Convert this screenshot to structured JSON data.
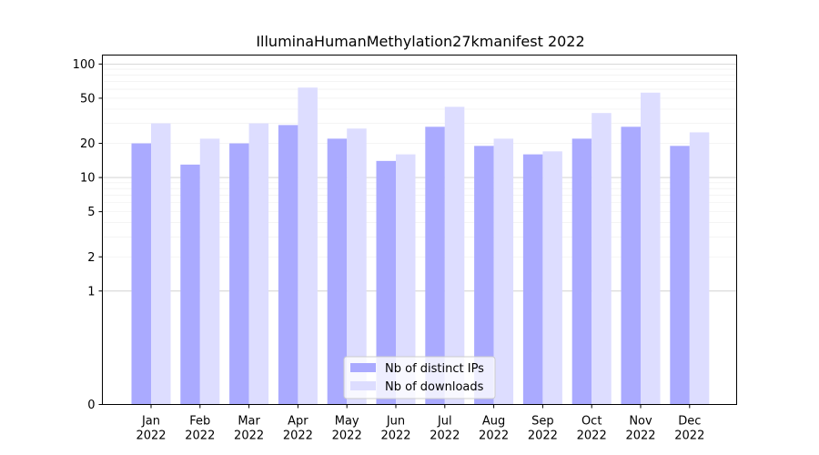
{
  "chart_data": {
    "type": "bar",
    "title": "IlluminaHumanMethylation27kmanifest 2022",
    "xlabel": "",
    "ylabel": "",
    "yscale": "symlog",
    "ylim": [
      0,
      120
    ],
    "yticks": [
      0,
      1,
      2,
      5,
      10,
      20,
      50,
      100
    ],
    "grid": "y",
    "legend_position": "bottom-center",
    "categories": [
      [
        "Jan",
        "2022"
      ],
      [
        "Feb",
        "2022"
      ],
      [
        "Mar",
        "2022"
      ],
      [
        "Apr",
        "2022"
      ],
      [
        "May",
        "2022"
      ],
      [
        "Jun",
        "2022"
      ],
      [
        "Jul",
        "2022"
      ],
      [
        "Aug",
        "2022"
      ],
      [
        "Sep",
        "2022"
      ],
      [
        "Oct",
        "2022"
      ],
      [
        "Nov",
        "2022"
      ],
      [
        "Dec",
        "2022"
      ]
    ],
    "series": [
      {
        "name": "Nb of distinct IPs",
        "color": "#aaaaff",
        "values": [
          20,
          13,
          20,
          29,
          22,
          14,
          28,
          19,
          16,
          22,
          28,
          19
        ]
      },
      {
        "name": "Nb of downloads",
        "color": "#ddddff",
        "values": [
          30,
          22,
          30,
          62,
          27,
          16,
          42,
          22,
          17,
          37,
          56,
          25
        ]
      }
    ]
  }
}
